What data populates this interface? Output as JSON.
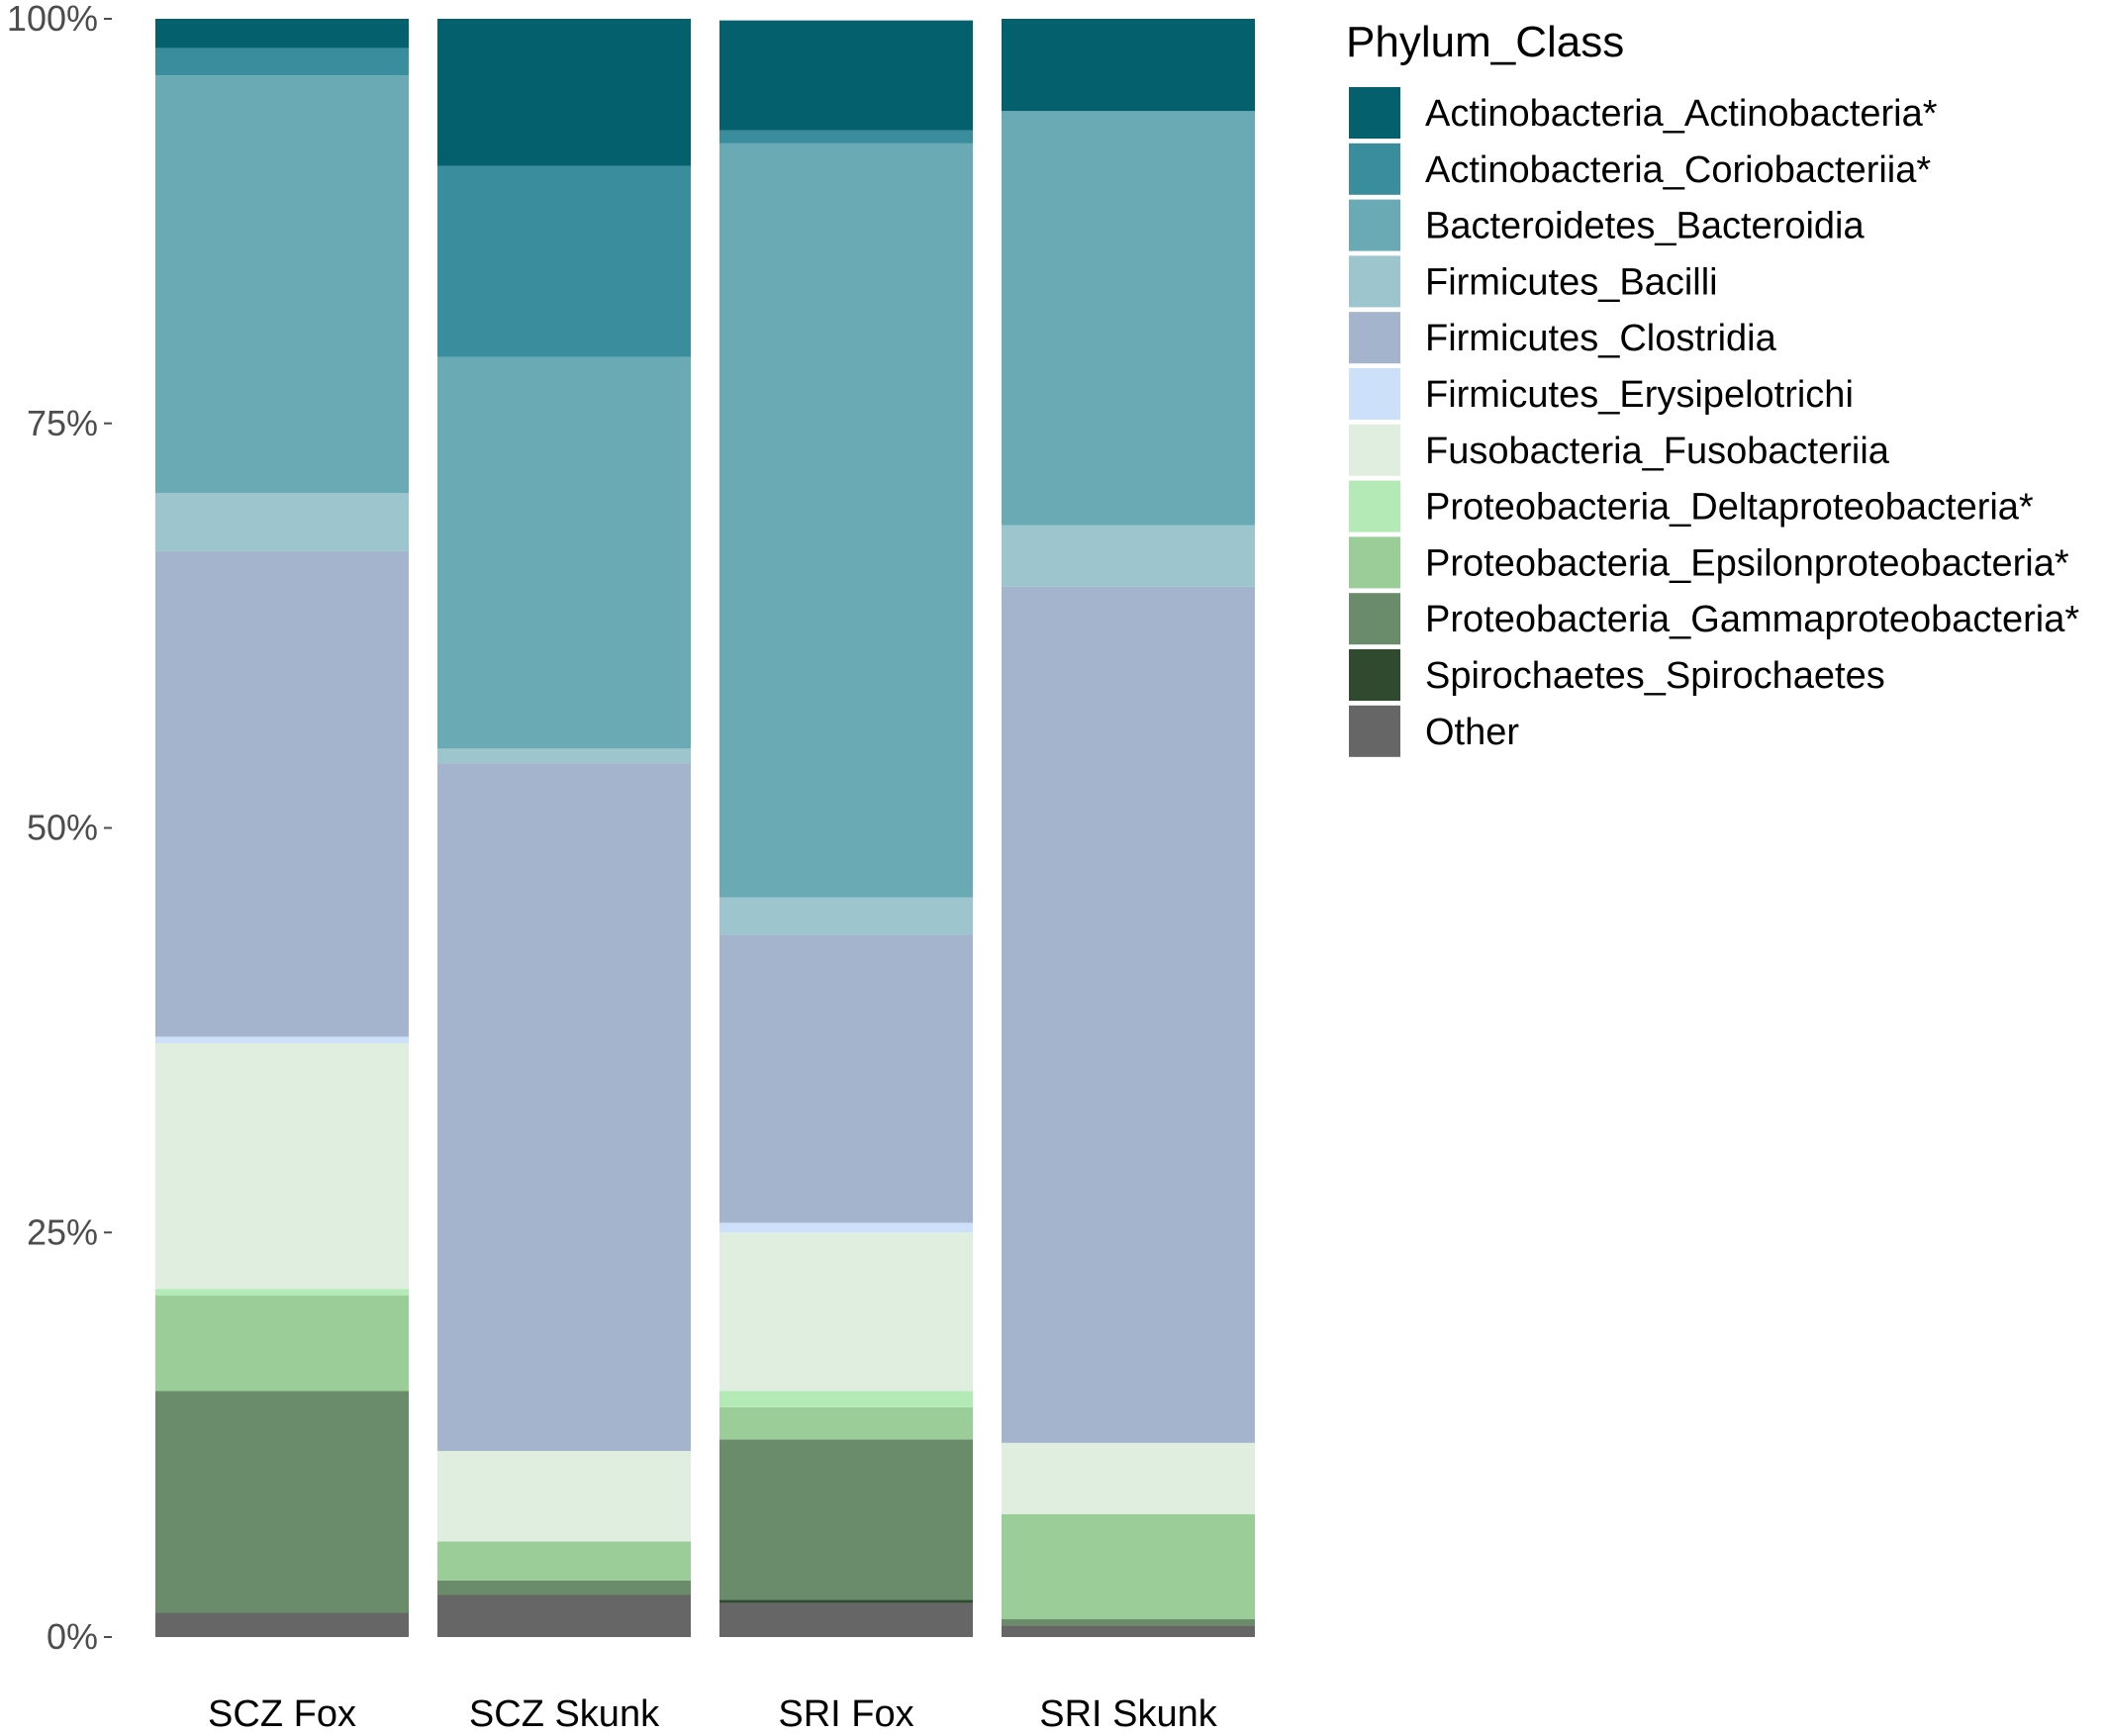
{
  "chart_data": {
    "type": "bar",
    "stacked": true,
    "percent": true,
    "categories": [
      "SCZ Fox",
      "SCZ Skunk",
      "SRI Fox",
      "SRI Skunk"
    ],
    "ylim": [
      0,
      100
    ],
    "yticks": [
      {
        "value": 0,
        "label": "0%"
      },
      {
        "value": 25,
        "label": "25%"
      },
      {
        "value": 50,
        "label": "50%"
      },
      {
        "value": 75,
        "label": "75%"
      },
      {
        "value": 100,
        "label": "100%"
      }
    ],
    "grid": false,
    "legend": {
      "title": "Phylum_Class",
      "position": "right"
    },
    "series": [
      {
        "name": "Actinobacteria_Actinobacteria*",
        "color": "#05606e",
        "values": [
          1.8,
          9.1,
          6.8,
          5.7
        ]
      },
      {
        "name": "Actinobacteria_Coriobacteriia*",
        "color": "#3a8d9d",
        "values": [
          1.7,
          11.8,
          0.8,
          0
        ]
      },
      {
        "name": "Bacteroidetes_Bacteroidia",
        "color": "#69aab5",
        "values": [
          25.8,
          24.2,
          46.6,
          25.6
        ]
      },
      {
        "name": "Firmicutes_Bacilli",
        "color": "#9dc5cd",
        "values": [
          3.6,
          0.9,
          2.3,
          3.8
        ]
      },
      {
        "name": "Firmicutes_Clostridia",
        "color": "#a3b4cc",
        "values": [
          30.0,
          42.5,
          17.8,
          52.9
        ]
      },
      {
        "name": "Firmicutes_Erysipelotrichi",
        "color": "#cce0fa",
        "values": [
          0.4,
          0,
          0.6,
          0
        ]
      },
      {
        "name": "Fusobacteria_Fusobacteriia",
        "color": "#e0eee0",
        "values": [
          15.2,
          5.6,
          9.8,
          4.4
        ]
      },
      {
        "name": "Proteobacteria_Deltaproteobacteria*",
        "color": "#b3eab5",
        "values": [
          0.4,
          0,
          1.0,
          0
        ]
      },
      {
        "name": "Proteobacteria_Epsilonproteobacteria*",
        "color": "#9bcd98",
        "values": [
          5.9,
          2.4,
          2.0,
          6.5
        ]
      },
      {
        "name": "Proteobacteria_Gammaproteobacteria*",
        "color": "#6a8c6a",
        "values": [
          13.7,
          0.9,
          9.9,
          0.4
        ]
      },
      {
        "name": "Spirochaetes_Spirochaetes",
        "color": "#2f4a2f",
        "values": [
          0,
          0,
          0.2,
          0
        ]
      },
      {
        "name": "Other",
        "color": "#666666",
        "values": [
          1.5,
          2.6,
          2.1,
          0.7
        ]
      }
    ]
  }
}
